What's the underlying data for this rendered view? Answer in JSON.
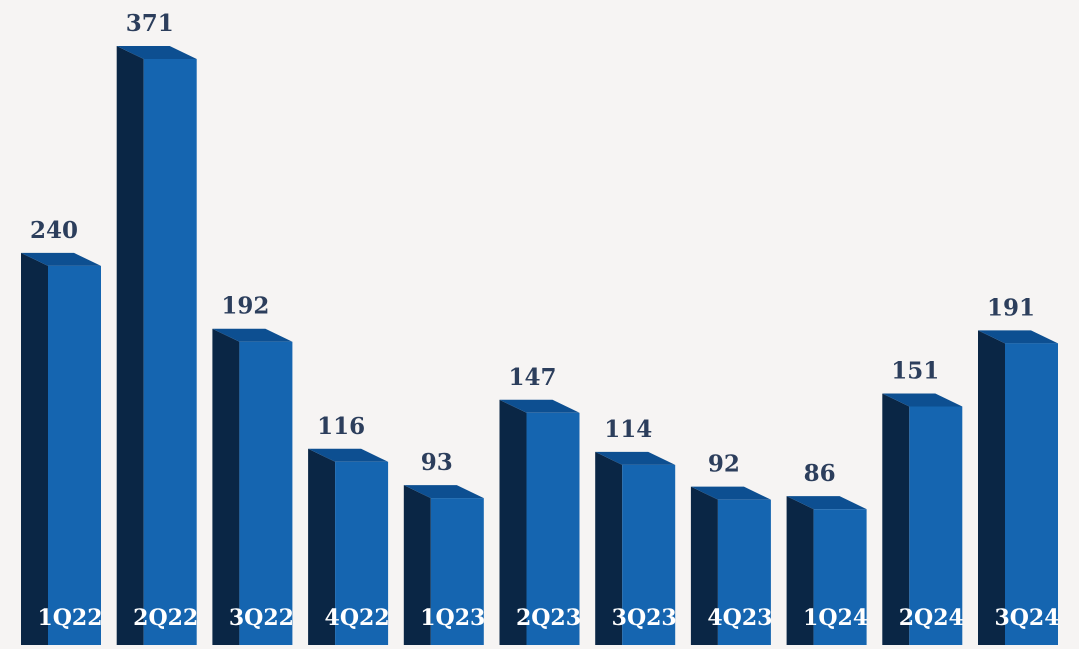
{
  "chart_data": {
    "type": "bar",
    "title": "",
    "xlabel": "",
    "ylabel": "",
    "categories": [
      "1Q22",
      "2Q22",
      "3Q22",
      "4Q22",
      "1Q23",
      "2Q23",
      "3Q23",
      "4Q23",
      "1Q24",
      "2Q24",
      "3Q24"
    ],
    "values": [
      240,
      371,
      192,
      116,
      93,
      147,
      114,
      92,
      86,
      151,
      191
    ],
    "ylim": [
      0,
      371
    ],
    "grid": false,
    "legend": "none",
    "colors": {
      "bar_front": "#1565b0",
      "bar_side": "#0a2645",
      "bar_top": "#0d4f91",
      "value_label": "#2c3e5c",
      "category_label": "#ffffff",
      "background": "#f6f4f3"
    }
  }
}
